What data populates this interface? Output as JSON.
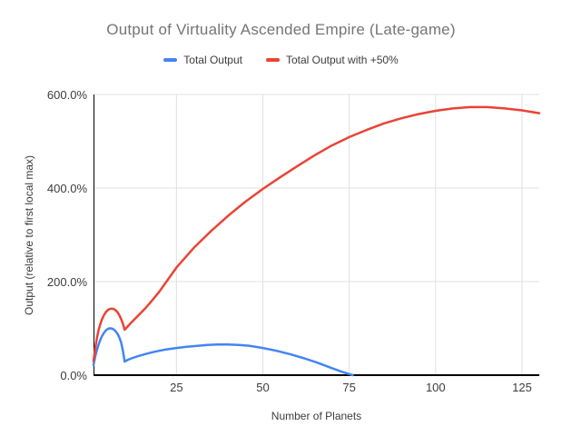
{
  "chart_data": {
    "type": "line",
    "title": "Output of Virtuality Ascended Empire (Late-game)",
    "xlabel": "Number of Planets",
    "ylabel": "Output (relative to first local max)",
    "xlim": [
      1,
      130
    ],
    "ylim": [
      0,
      600
    ],
    "grid": "major-only",
    "legend_position": "top-center",
    "background": "#ffffff",
    "x_ticks": [
      {
        "v": 25,
        "label": "25"
      },
      {
        "v": 50,
        "label": "50"
      },
      {
        "v": 75,
        "label": "75"
      },
      {
        "v": 100,
        "label": "100"
      },
      {
        "v": 125,
        "label": "125"
      }
    ],
    "y_ticks": [
      {
        "v": 0,
        "label": "0.0%"
      },
      {
        "v": 200,
        "label": "200.0%"
      },
      {
        "v": 400,
        "label": "400.0%"
      },
      {
        "v": 600,
        "label": "600.0%"
      }
    ],
    "series": [
      {
        "name": "Total Output",
        "color": "#4285F4",
        "x": [
          1,
          1.5,
          2,
          2.5,
          3,
          3.5,
          4,
          4.5,
          5,
          5.5,
          6,
          6.5,
          7,
          7.5,
          8,
          8.5,
          9,
          9.5,
          10,
          10.5,
          11,
          12,
          14,
          16,
          18,
          20,
          22,
          25,
          28,
          31,
          34,
          37,
          40,
          43,
          46,
          50,
          54,
          58,
          62,
          66,
          70,
          73,
          76
        ],
        "y": [
          22,
          40,
          54,
          66,
          76,
          84,
          90,
          95,
          98,
          100,
          100,
          99,
          97,
          93,
          88,
          80,
          70,
          52,
          29,
          31,
          33,
          36,
          41,
          45,
          49,
          52,
          55,
          58,
          60.5,
          62.5,
          64.5,
          65.5,
          65.5,
          64.5,
          63,
          58,
          52,
          44.5,
          36,
          26,
          15,
          7,
          0
        ]
      },
      {
        "name": "Total Output with +50%",
        "color": "#EA4335",
        "x": [
          1,
          1.5,
          2,
          2.5,
          3,
          3.5,
          4,
          4.5,
          5,
          5.5,
          6,
          6.5,
          7,
          7.5,
          8,
          8.5,
          9,
          9.5,
          10,
          10.5,
          11,
          12,
          14,
          16,
          18,
          20,
          25,
          30,
          35,
          40,
          45,
          50,
          55,
          60,
          65,
          70,
          75,
          80,
          85,
          90,
          95,
          100,
          105,
          110,
          115,
          120,
          125,
          130
        ],
        "y": [
          30,
          58,
          80,
          97,
          110,
          120,
          128,
          134,
          138,
          141,
          142,
          142,
          141,
          138,
          134,
          128,
          120,
          110,
          97,
          101,
          105,
          113,
          128,
          143,
          160,
          178,
          230,
          272,
          308,
          341,
          371,
          398,
          423,
          447,
          470,
          491,
          509,
          524,
          538,
          549,
          558,
          565,
          570,
          573,
          573,
          570,
          566,
          560
        ]
      }
    ],
    "colors": {
      "grid": "#e0e0e0",
      "axis": "#000000",
      "title_text": "#757575",
      "tick_text": "#3c3c3c"
    }
  }
}
